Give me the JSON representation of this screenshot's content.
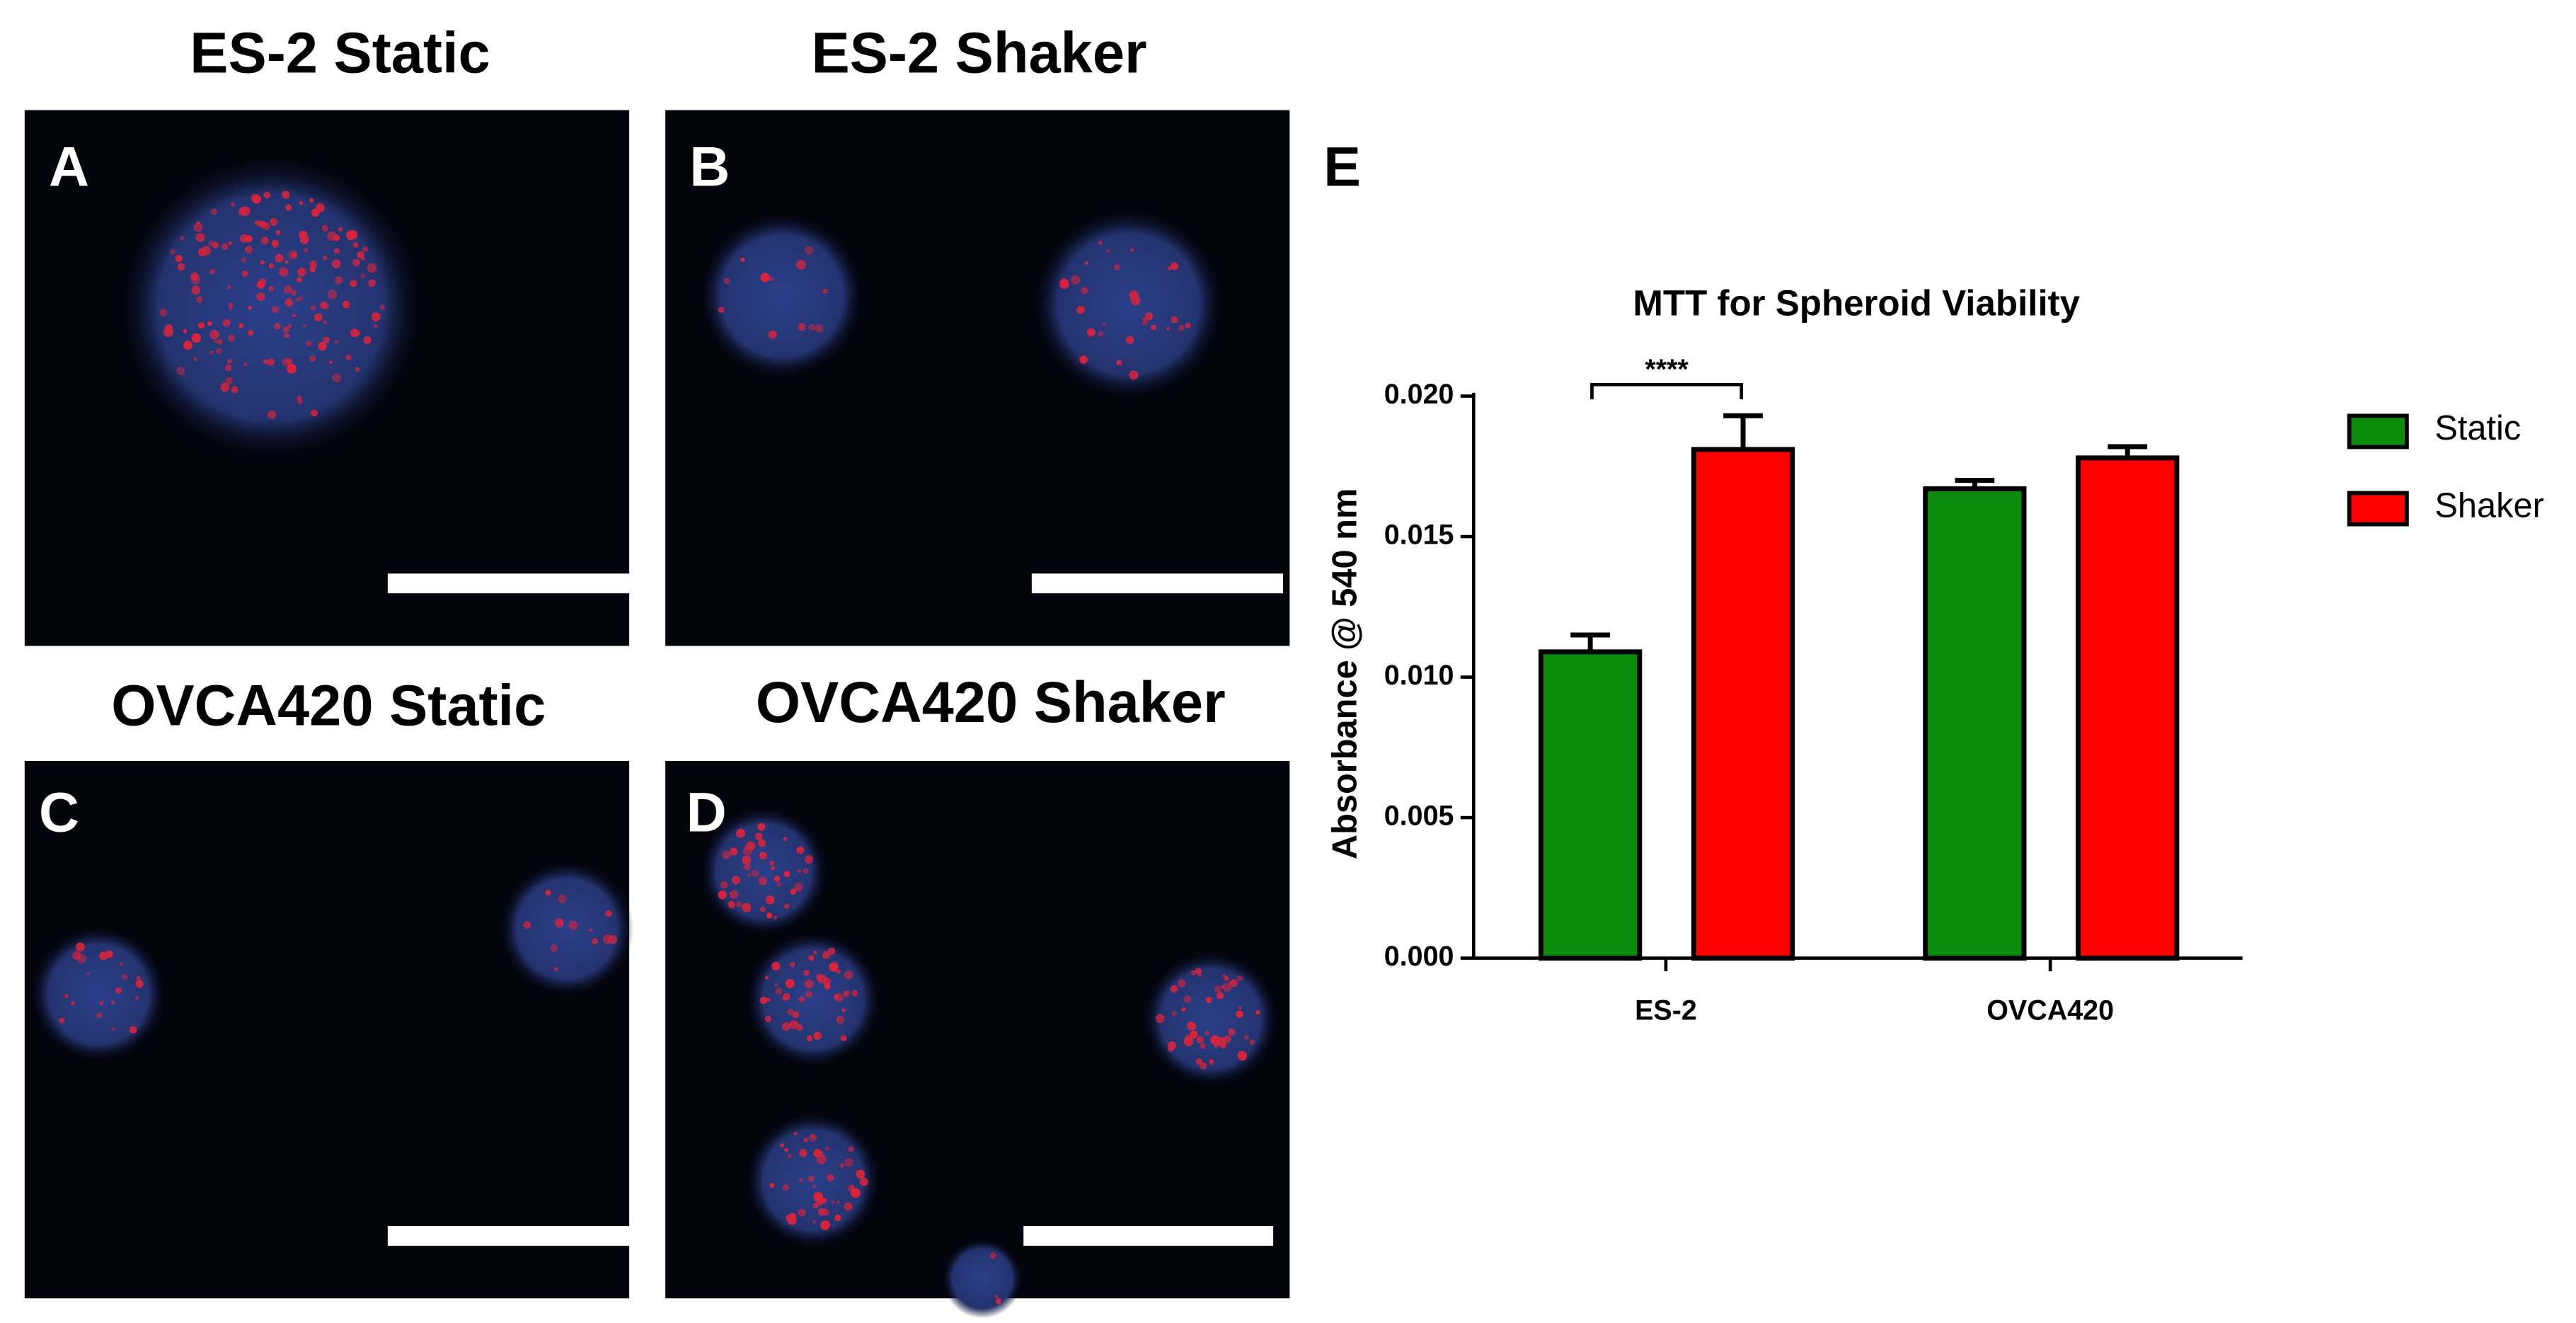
{
  "panels": [
    {
      "letter": "A",
      "title": "ES-2 Static"
    },
    {
      "letter": "B",
      "title": "ES-2 Shaker"
    },
    {
      "letter": "C",
      "title": "OVCA420 Static"
    },
    {
      "letter": "D",
      "title": "OVCA420 Shaker"
    }
  ],
  "chart_data": {
    "type": "bar",
    "panel_letter": "E",
    "title": "MTT for Spheroid Viability",
    "y_label": "Absorbance @ 540 nm",
    "categories": [
      "ES-2",
      "OVCA420"
    ],
    "series": [
      {
        "name": "Static",
        "color": "#0b8a0b",
        "values": [
          0.0109,
          0.0167
        ],
        "errors": [
          0.0006,
          0.0003
        ]
      },
      {
        "name": "Shaker",
        "color": "#ff0000",
        "values": [
          0.0181,
          0.0178
        ],
        "errors": [
          0.0012,
          0.0004
        ]
      }
    ],
    "ylim": [
      0,
      0.02
    ],
    "yticks": [
      {
        "value": 0,
        "label": "0.000"
      },
      {
        "value": 0.005,
        "label": "0.005"
      },
      {
        "value": 0.01,
        "label": "0.010"
      },
      {
        "value": 0.015,
        "label": "0.015"
      },
      {
        "value": 0.02,
        "label": "0.020"
      }
    ],
    "significance": "****",
    "legend": "right"
  }
}
